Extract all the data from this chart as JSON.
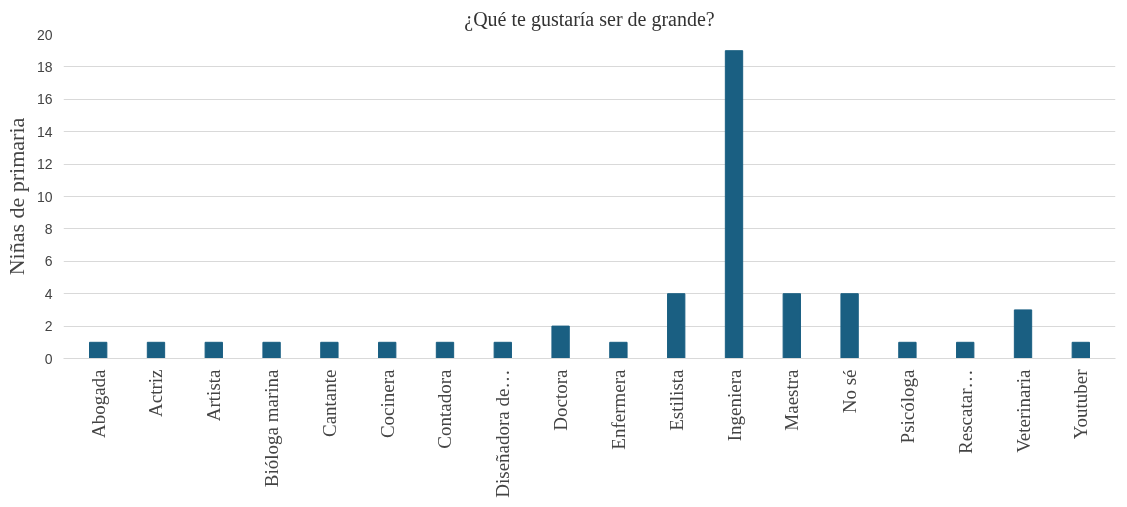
{
  "chart_data": {
    "type": "bar",
    "title": "¿Qué te gustaría ser de grande?",
    "ylabel": "Niñas de primaria",
    "categories": [
      "Abogada",
      "Actriz",
      "Artista",
      "Bióloga marina",
      "Cantante",
      "Cocinera",
      "Contadora",
      "Diseñadora de…",
      "Doctora",
      "Enfermera",
      "Estilista",
      "Ingeniera",
      "Maestra",
      "No sé",
      "Psicóloga",
      "Rescatar…",
      "Veterinaria",
      "Youtuber"
    ],
    "values": [
      1,
      1,
      1,
      1,
      1,
      1,
      1,
      1,
      2,
      1,
      4,
      19,
      4,
      4,
      1,
      1,
      3,
      1
    ],
    "color": "#1a5f82",
    "ylim": [
      0,
      20
    ],
    "yticks": [
      0,
      2,
      4,
      6,
      8,
      10,
      12,
      14,
      16,
      18,
      20
    ],
    "grid": "y"
  }
}
